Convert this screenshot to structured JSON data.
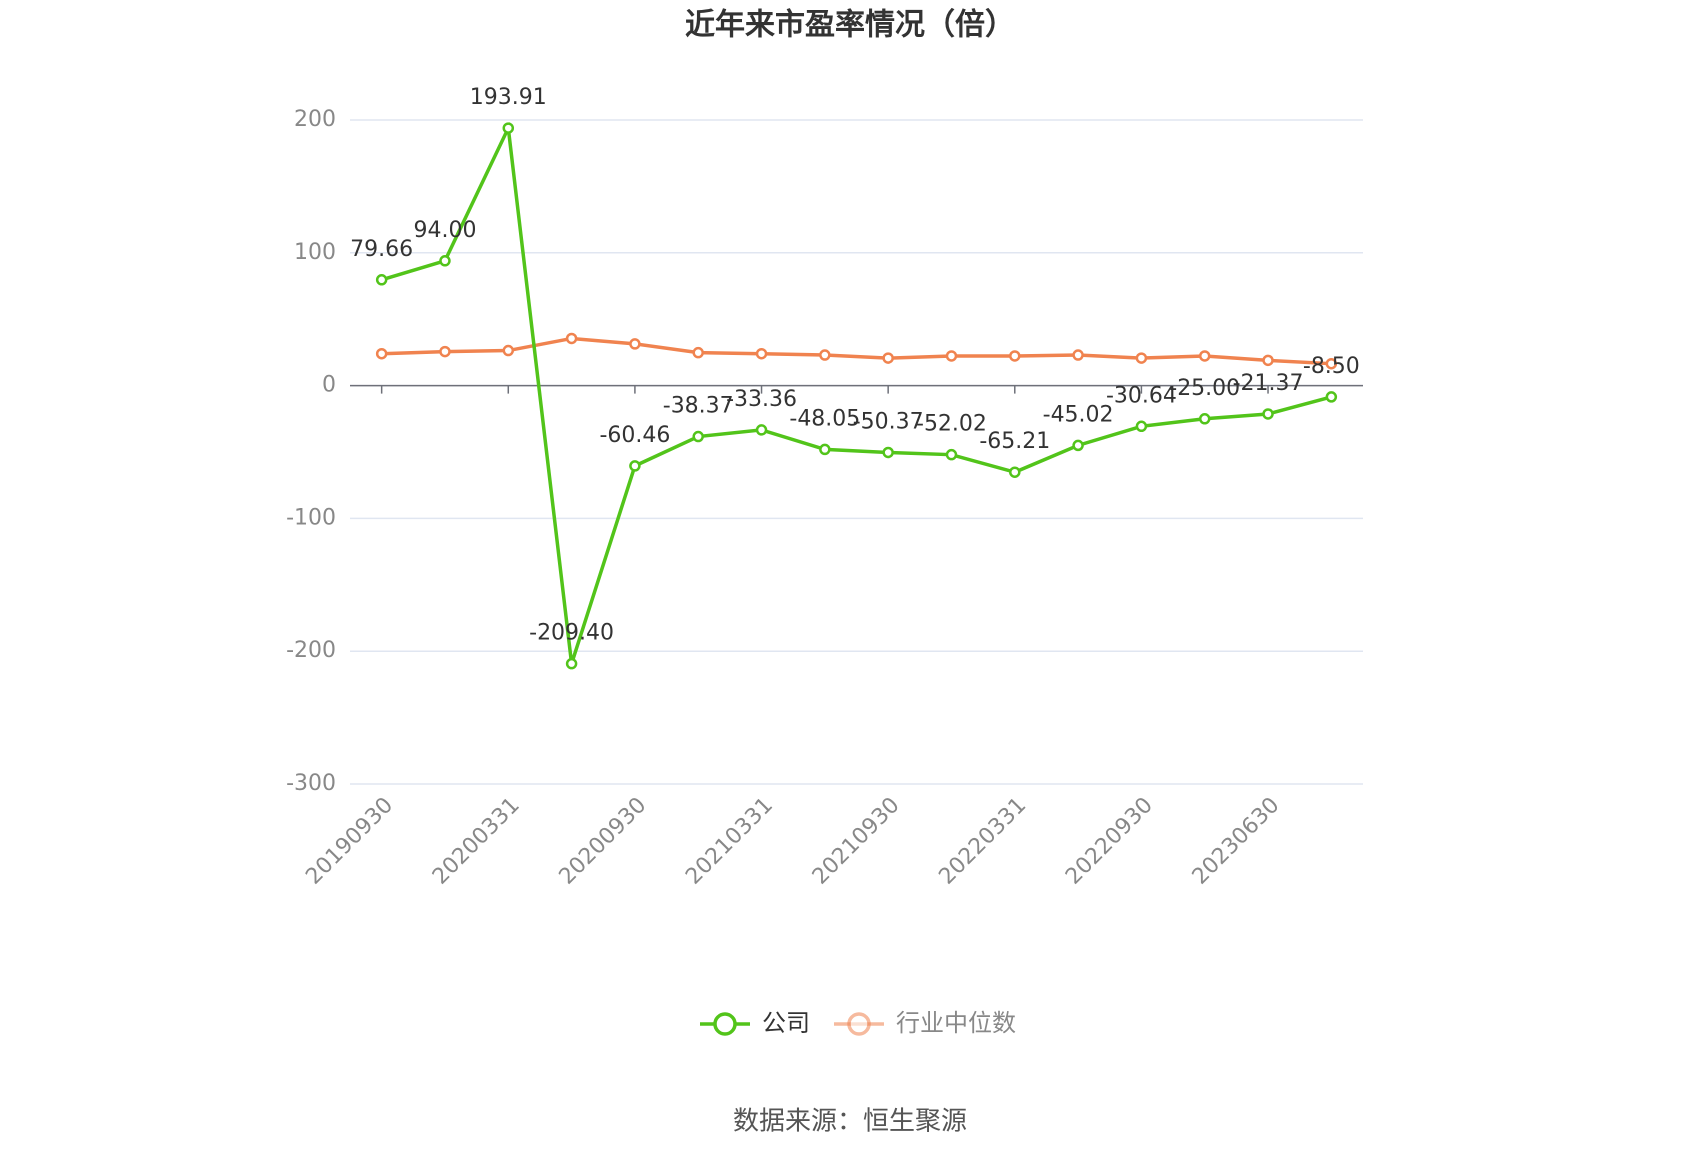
{
  "chart_data": {
    "type": "line",
    "title": "近年来市盈率情况（倍）",
    "categories": [
      "20190930",
      null,
      "20200331",
      null,
      "20200930",
      null,
      "20210331",
      null,
      "20210930",
      null,
      "20220331",
      null,
      "20220930",
      null,
      "20230630",
      null
    ],
    "series": [
      {
        "name": "公司",
        "color": "#52c41a",
        "values": [
          79.66,
          94.0,
          193.91,
          -209.4,
          -60.46,
          -38.37,
          -33.36,
          -48.05,
          -50.37,
          -52.02,
          -65.21,
          -45.02,
          -30.64,
          -25.0,
          -21.37,
          -8.5
        ],
        "value_labels": [
          "79.66",
          "94.00",
          "193.91",
          "-209.40",
          "-60.46",
          "-38.37",
          "-33.36",
          "-48.05",
          "-50.37",
          "-52.02",
          "-65.21",
          "-45.02",
          "-30.64",
          "-25.00",
          "-21.37",
          "-8.50"
        ]
      },
      {
        "name": "行业中位数",
        "color": "#f0834f",
        "values": [
          24,
          25.6,
          26.4,
          35.5,
          31.4,
          24.8,
          24,
          23,
          20.7,
          22.3,
          22.3,
          23,
          20.7,
          22.3,
          19,
          16.5
        ]
      }
    ],
    "ylim": [
      -300,
      200
    ],
    "yticks": [
      -300,
      -200,
      -100,
      0,
      100,
      200
    ],
    "grid": true,
    "legend": "bottom",
    "source": "数据来源：恒生聚源"
  }
}
